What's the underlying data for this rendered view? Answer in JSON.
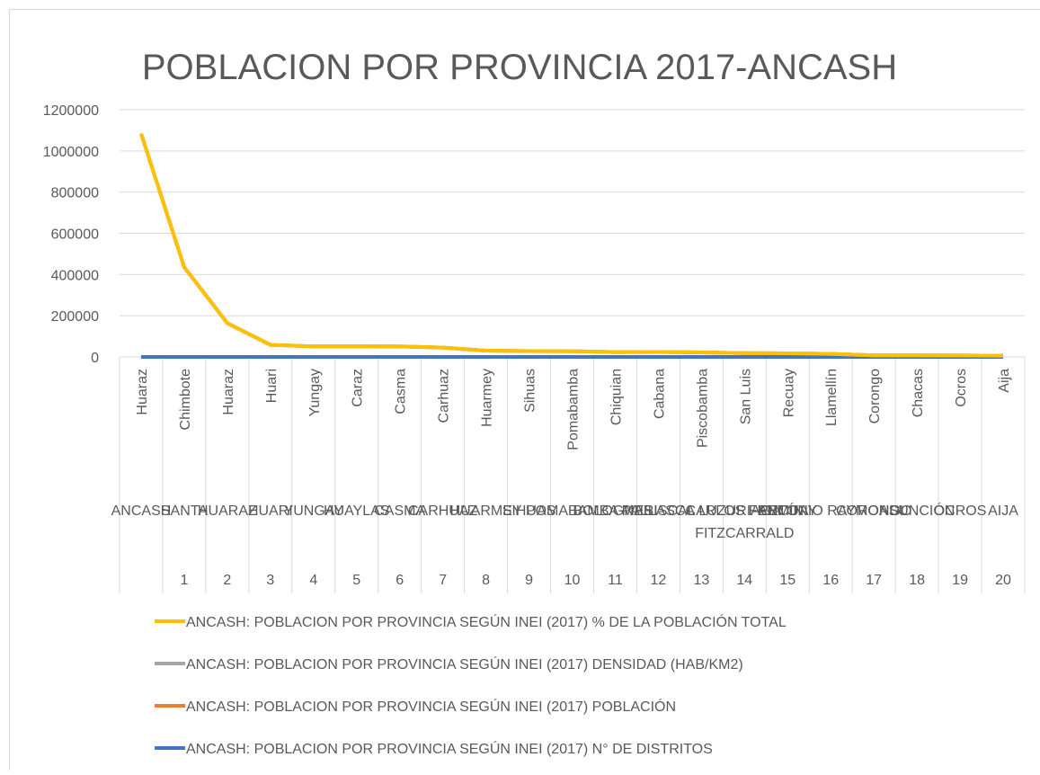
{
  "chart_data": {
    "type": "line",
    "stacked": true,
    "title": "POBLACION POR PROVINCIA 2017-ANCASH",
    "categories": [
      "Huaraz",
      "Chimbote",
      "Huaraz",
      "Huari",
      "Yungay",
      "Caraz",
      "Casma",
      "Carhuaz",
      "Huarmey",
      "Sihuas",
      "Pomabamba",
      "Chiquian",
      "Cabana",
      "Piscobamba",
      "San Luis",
      "Recuay",
      "Llamellín",
      "Corongo",
      "Chacas",
      "Ocros",
      "Aija"
    ],
    "provinces": [
      "ANCASH",
      "SANTA",
      "HUARAZ",
      "HUARI",
      "YUNGAY",
      "HUAYLAS",
      "CASMA",
      "CARHUAZ",
      "HUARMEY",
      "SIHUAS",
      "POMABAMBA",
      "BOLOGNESI",
      "PALLASCA",
      "MARISCAL LUZURIAGA",
      "CARLOS FERMÍN FITZCARRALD",
      "RECUAY",
      "ANTONIO RAYMONDI",
      "CORONGO",
      "ASUNCIÓN",
      "OCROS",
      "AIJA"
    ],
    "order": [
      null,
      1,
      2,
      3,
      4,
      5,
      6,
      7,
      8,
      9,
      10,
      11,
      12,
      13,
      14,
      15,
      16,
      17,
      18,
      19,
      20
    ],
    "ylim": [
      0,
      1200000
    ],
    "yticks": [
      0,
      200000,
      400000,
      600000,
      800000,
      1000000,
      1200000
    ],
    "grid": true,
    "legend": "bottom",
    "series": [
      {
        "name": "ANCASH: POBLACION POR PROVINCIA SEGÚN INEI (2017) % DE LA POBLACIÓN TOTAL",
        "color": "#ffc000",
        "values": [
          100,
          40.2,
          15.1,
          5.4,
          4.7,
          4.8,
          4.7,
          4.2,
          2.8,
          2.6,
          2.5,
          2.2,
          2.2,
          2.0,
          1.7,
          1.6,
          1.4,
          0.7,
          0.7,
          0.7,
          0.6
        ]
      },
      {
        "name": "ANCASH: POBLACION POR PROVINCIA SEGÚN INEI (2017) DENSIDAD (HAB/KM2)",
        "color": "#a5a5a5",
        "values": [
          30,
          121,
          66,
          21,
          34,
          23,
          22,
          56,
          7,
          21,
          30,
          8,
          11,
          30,
          34,
          7,
          25,
          7,
          14,
          4,
          8
        ]
      },
      {
        "name": "ANCASH: POBLACION POR PROVINCIA SEGÚN INEI (2017) POBLACIÓN",
        "color": "#ed7d31",
        "values": [
          1083519,
          435807,
          163936,
          58563,
          51137,
          51478,
          50989,
          45184,
          30307,
          28486,
          27551,
          23625,
          24086,
          21976,
          18600,
          17542,
          14700,
          7500,
          7500,
          7000,
          6000
        ]
      },
      {
        "name": "ANCASH: POBLACION POR PROVINCIA SEGÚN INEI (2017) N° DE DISTRITOS",
        "color": "#4472c4",
        "values": [
          166,
          9,
          12,
          16,
          8,
          10,
          4,
          11,
          5,
          10,
          4,
          15,
          11,
          8,
          3,
          10,
          6,
          7,
          2,
          10,
          5
        ]
      }
    ]
  }
}
